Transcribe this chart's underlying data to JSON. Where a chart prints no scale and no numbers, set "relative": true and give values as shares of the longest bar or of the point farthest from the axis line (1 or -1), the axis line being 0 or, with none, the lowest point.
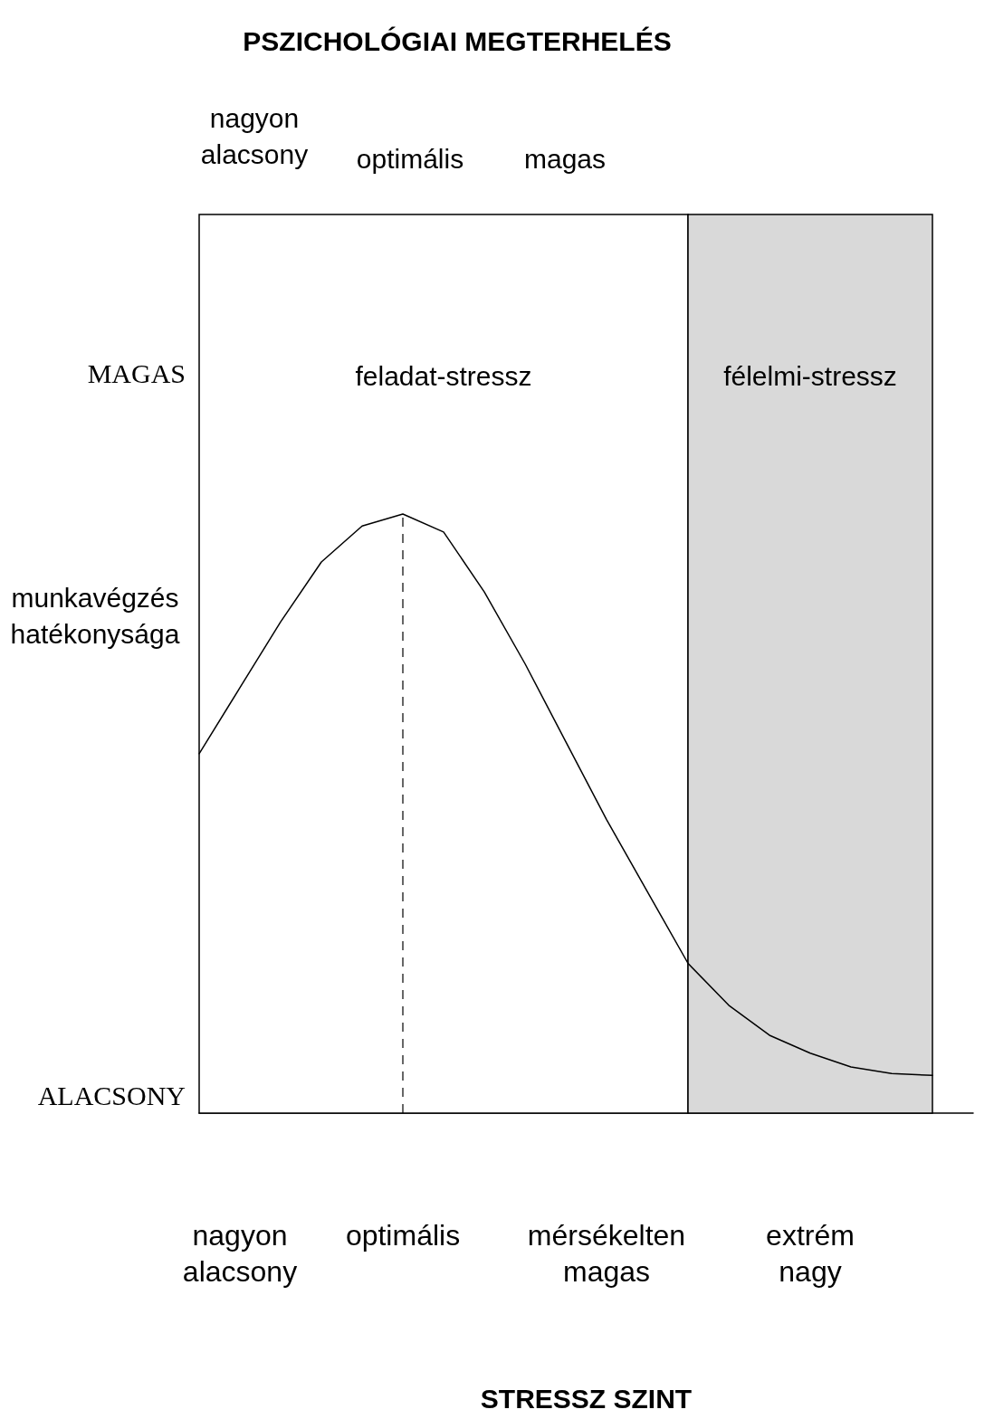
{
  "chart_data": {
    "type": "line",
    "relative": true,
    "x2label": "PSZICHOLÓGIAI MEGTERHELÉS",
    "xlabel": "STRESSZ SZINT",
    "ylabel": "munkavégzés hatékonysága",
    "categories": [
      null,
      "nagyon alacsony",
      null,
      null,
      null,
      "optimális",
      null,
      null,
      null,
      null,
      "mérsékelten magas",
      null,
      null,
      null,
      null,
      "extrém nagy",
      null,
      null,
      null,
      null
    ],
    "series": [
      {
        "color": "#000000",
        "values": [
          0.6,
          0.71,
          0.82,
          0.92,
          0.98,
          1,
          0.97,
          0.87,
          0.75,
          0.62,
          0.49,
          0.37,
          0.25,
          0.18,
          0.13,
          0.1,
          0.077,
          0.066,
          0.063,
          null
        ]
      }
    ],
    "annotations": [
      "nagyon alacsony",
      "optimális",
      "magas",
      "MAGAS",
      "ALACSONY",
      "feladat-stressz",
      "félelmi-stressz"
    ],
    "marker": "none"
  }
}
